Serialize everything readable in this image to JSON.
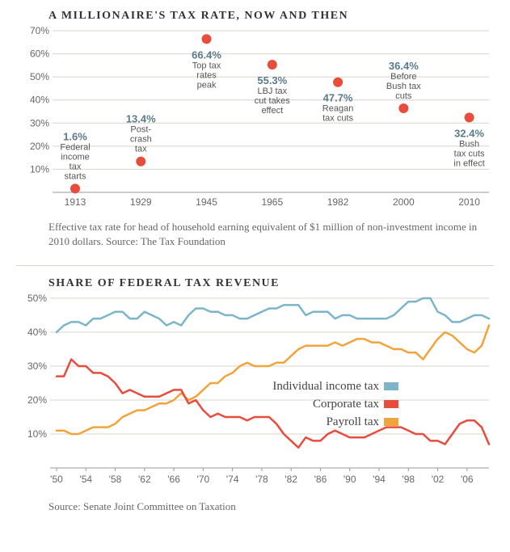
{
  "chart1": {
    "title": "A MILLIONAIRE'S TAX RATE, NOW AND THEN",
    "caption": "Effective tax rate for head of household earning equivalent of $1 million of non-investment income in 2010 dollars. Source: The Tax Foundation",
    "type": "scatter",
    "background_color": "#ffffff",
    "grid_color": "#d9d4c8",
    "marker_color": "#e74c3c",
    "marker_radius": 6,
    "label_pct_color": "#5a7a8a",
    "label_txt_color": "#555555",
    "ylim": [
      0,
      70
    ],
    "ytick_step": 10,
    "yticks": [
      "10%",
      "20%",
      "30%",
      "40%",
      "50%",
      "60%",
      "70%"
    ],
    "xticks": [
      "1913",
      "1929",
      "1945",
      "1965",
      "1982",
      "2000",
      "2010"
    ],
    "points": [
      {
        "year": "1913",
        "value": 1.6,
        "pct": "1.6%",
        "lines": [
          "Federal",
          "income",
          "tax",
          "starts"
        ],
        "label_above": true
      },
      {
        "year": "1929",
        "value": 13.4,
        "pct": "13.4%",
        "lines": [
          "Post-",
          "crash",
          "tax"
        ],
        "label_above": true
      },
      {
        "year": "1945",
        "value": 66.4,
        "pct": "66.4%",
        "lines": [
          "Top tax",
          "rates",
          "peak"
        ],
        "label_above": false
      },
      {
        "year": "1965",
        "value": 55.3,
        "pct": "55.3%",
        "lines": [
          "LBJ tax",
          "cut takes",
          "effect"
        ],
        "label_above": false
      },
      {
        "year": "1982",
        "value": 47.7,
        "pct": "47.7%",
        "lines": [
          "Reagan",
          "tax cuts"
        ],
        "label_above": false
      },
      {
        "year": "2000",
        "value": 36.4,
        "pct": "36.4%",
        "lines": [
          "Before",
          "Bush tax",
          "cuts"
        ],
        "label_above": true
      },
      {
        "year": "2010",
        "value": 32.4,
        "pct": "32.4%",
        "lines": [
          "Bush",
          "tax cuts",
          "in effect"
        ],
        "label_above": false
      }
    ]
  },
  "chart2": {
    "title": "SHARE OF FEDERAL TAX REVENUE",
    "caption": "Source: Senate Joint Committee on Taxation",
    "type": "line",
    "background_color": "#ffffff",
    "grid_color": "#d9d4c8",
    "line_width": 2.5,
    "ylim": [
      0,
      50
    ],
    "ytick_step": 10,
    "yticks": [
      "10%",
      "20%",
      "30%",
      "40%",
      "50%"
    ],
    "x_start": 1950,
    "x_end": 2009,
    "xticks": [
      "'50",
      "'54",
      "'58",
      "'62",
      "'66",
      "'70",
      "'74",
      "'78",
      "'82",
      "'86",
      "'90",
      "'94",
      "'98",
      "'02",
      "'06"
    ],
    "xtick_years": [
      1950,
      1954,
      1958,
      1962,
      1966,
      1970,
      1974,
      1978,
      1982,
      1986,
      1990,
      1994,
      1998,
      2002,
      2006
    ],
    "legend": [
      {
        "label": "Individual income tax",
        "color": "#7cb5c9"
      },
      {
        "label": "Corporate tax",
        "color": "#e74c3c"
      },
      {
        "label": "Payroll tax",
        "color": "#f1a33c"
      }
    ],
    "series": {
      "individual": {
        "color": "#7cb5c9",
        "data": [
          [
            1950,
            40
          ],
          [
            1951,
            42
          ],
          [
            1952,
            43
          ],
          [
            1953,
            43
          ],
          [
            1954,
            42
          ],
          [
            1955,
            44
          ],
          [
            1956,
            44
          ],
          [
            1957,
            45
          ],
          [
            1958,
            46
          ],
          [
            1959,
            46
          ],
          [
            1960,
            44
          ],
          [
            1961,
            44
          ],
          [
            1962,
            46
          ],
          [
            1963,
            45
          ],
          [
            1964,
            44
          ],
          [
            1965,
            42
          ],
          [
            1966,
            43
          ],
          [
            1967,
            42
          ],
          [
            1968,
            45
          ],
          [
            1969,
            47
          ],
          [
            1970,
            47
          ],
          [
            1971,
            46
          ],
          [
            1972,
            46
          ],
          [
            1973,
            45
          ],
          [
            1974,
            45
          ],
          [
            1975,
            44
          ],
          [
            1976,
            44
          ],
          [
            1977,
            45
          ],
          [
            1978,
            46
          ],
          [
            1979,
            47
          ],
          [
            1980,
            47
          ],
          [
            1981,
            48
          ],
          [
            1982,
            48
          ],
          [
            1983,
            48
          ],
          [
            1984,
            45
          ],
          [
            1985,
            46
          ],
          [
            1986,
            46
          ],
          [
            1987,
            46
          ],
          [
            1988,
            44
          ],
          [
            1989,
            45
          ],
          [
            1990,
            45
          ],
          [
            1991,
            44
          ],
          [
            1992,
            44
          ],
          [
            1993,
            44
          ],
          [
            1994,
            44
          ],
          [
            1995,
            44
          ],
          [
            1996,
            45
          ],
          [
            1997,
            47
          ],
          [
            1998,
            49
          ],
          [
            1999,
            49
          ],
          [
            2000,
            50
          ],
          [
            2001,
            50
          ],
          [
            2002,
            46
          ],
          [
            2003,
            45
          ],
          [
            2004,
            43
          ],
          [
            2005,
            43
          ],
          [
            2006,
            44
          ],
          [
            2007,
            45
          ],
          [
            2008,
            45
          ],
          [
            2009,
            44
          ]
        ]
      },
      "corporate": {
        "color": "#e74c3c",
        "data": [
          [
            1950,
            27
          ],
          [
            1951,
            27
          ],
          [
            1952,
            32
          ],
          [
            1953,
            30
          ],
          [
            1954,
            30
          ],
          [
            1955,
            28
          ],
          [
            1956,
            28
          ],
          [
            1957,
            27
          ],
          [
            1958,
            25
          ],
          [
            1959,
            22
          ],
          [
            1960,
            23
          ],
          [
            1961,
            22
          ],
          [
            1962,
            21
          ],
          [
            1963,
            21
          ],
          [
            1964,
            21
          ],
          [
            1965,
            22
          ],
          [
            1966,
            23
          ],
          [
            1967,
            23
          ],
          [
            1968,
            19
          ],
          [
            1969,
            20
          ],
          [
            1970,
            17
          ],
          [
            1971,
            15
          ],
          [
            1972,
            16
          ],
          [
            1973,
            15
          ],
          [
            1974,
            15
          ],
          [
            1975,
            15
          ],
          [
            1976,
            14
          ],
          [
            1977,
            15
          ],
          [
            1978,
            15
          ],
          [
            1979,
            15
          ],
          [
            1980,
            13
          ],
          [
            1981,
            10
          ],
          [
            1982,
            8
          ],
          [
            1983,
            6
          ],
          [
            1984,
            9
          ],
          [
            1985,
            8
          ],
          [
            1986,
            8
          ],
          [
            1987,
            10
          ],
          [
            1988,
            11
          ],
          [
            1989,
            10
          ],
          [
            1990,
            9
          ],
          [
            1991,
            9
          ],
          [
            1992,
            9
          ],
          [
            1993,
            10
          ],
          [
            1994,
            11
          ],
          [
            1995,
            12
          ],
          [
            1996,
            12
          ],
          [
            1997,
            12
          ],
          [
            1998,
            11
          ],
          [
            1999,
            10
          ],
          [
            2000,
            10
          ],
          [
            2001,
            8
          ],
          [
            2002,
            8
          ],
          [
            2003,
            7
          ],
          [
            2004,
            10
          ],
          [
            2005,
            13
          ],
          [
            2006,
            14
          ],
          [
            2007,
            14
          ],
          [
            2008,
            12
          ],
          [
            2009,
            7
          ]
        ]
      },
      "payroll": {
        "color": "#f1a33c",
        "data": [
          [
            1950,
            11
          ],
          [
            1951,
            11
          ],
          [
            1952,
            10
          ],
          [
            1953,
            10
          ],
          [
            1954,
            11
          ],
          [
            1955,
            12
          ],
          [
            1956,
            12
          ],
          [
            1957,
            12
          ],
          [
            1958,
            13
          ],
          [
            1959,
            15
          ],
          [
            1960,
            16
          ],
          [
            1961,
            17
          ],
          [
            1962,
            17
          ],
          [
            1963,
            18
          ],
          [
            1964,
            19
          ],
          [
            1965,
            19
          ],
          [
            1966,
            20
          ],
          [
            1967,
            22
          ],
          [
            1968,
            20
          ],
          [
            1969,
            21
          ],
          [
            1970,
            23
          ],
          [
            1971,
            25
          ],
          [
            1972,
            25
          ],
          [
            1973,
            27
          ],
          [
            1974,
            28
          ],
          [
            1975,
            30
          ],
          [
            1976,
            31
          ],
          [
            1977,
            30
          ],
          [
            1978,
            30
          ],
          [
            1979,
            30
          ],
          [
            1980,
            31
          ],
          [
            1981,
            31
          ],
          [
            1982,
            33
          ],
          [
            1983,
            35
          ],
          [
            1984,
            36
          ],
          [
            1985,
            36
          ],
          [
            1986,
            36
          ],
          [
            1987,
            36
          ],
          [
            1988,
            37
          ],
          [
            1989,
            36
          ],
          [
            1990,
            37
          ],
          [
            1991,
            38
          ],
          [
            1992,
            38
          ],
          [
            1993,
            37
          ],
          [
            1994,
            37
          ],
          [
            1995,
            36
          ],
          [
            1996,
            35
          ],
          [
            1997,
            35
          ],
          [
            1998,
            34
          ],
          [
            1999,
            34
          ],
          [
            2000,
            32
          ],
          [
            2001,
            35
          ],
          [
            2002,
            38
          ],
          [
            2003,
            40
          ],
          [
            2004,
            39
          ],
          [
            2005,
            37
          ],
          [
            2006,
            35
          ],
          [
            2007,
            34
          ],
          [
            2008,
            36
          ],
          [
            2009,
            42
          ]
        ]
      }
    }
  }
}
